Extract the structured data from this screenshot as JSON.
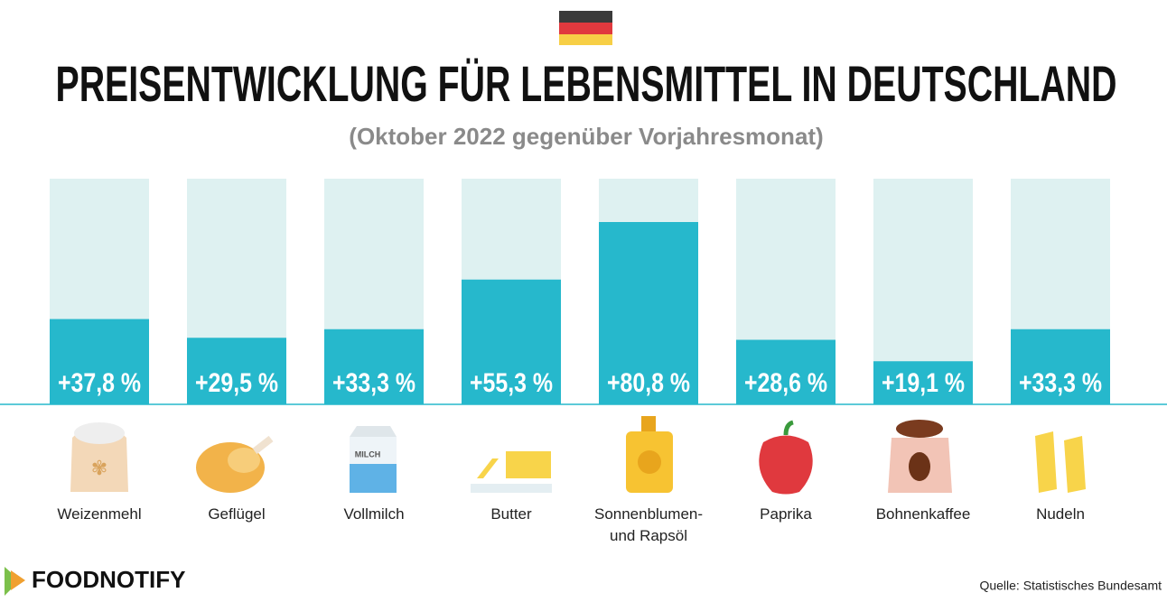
{
  "chart_data": {
    "type": "bar",
    "title": "PREISENTWICKLUNG FÜR LEBENSMITTEL IN DEUTSCHLAND",
    "subtitle": "(Oktober 2022 gegenüber Vorjahresmonat)",
    "categories": [
      "Weizenmehl",
      "Geflügel",
      "Vollmilch",
      "Butter",
      "Sonnenblumen- und Rapsöl",
      "Paprika",
      "Bohnenkaffee",
      "Nudeln"
    ],
    "values": [
      37.8,
      29.5,
      33.3,
      55.3,
      80.8,
      28.6,
      19.1,
      33.3
    ],
    "value_labels": [
      "+37,8 %",
      "+29,5 %",
      "+33,3 %",
      "+55,3 %",
      "+80,8 %",
      "+28,6 %",
      "+19,1 %",
      "+33,3 %"
    ],
    "color": "#26b8cc",
    "background_color": "#def1f1",
    "ylim": [
      0,
      100
    ]
  },
  "footer": {
    "brand": "FOODNOTIFY",
    "source": "Quelle: Statistisches Bundesamt"
  }
}
